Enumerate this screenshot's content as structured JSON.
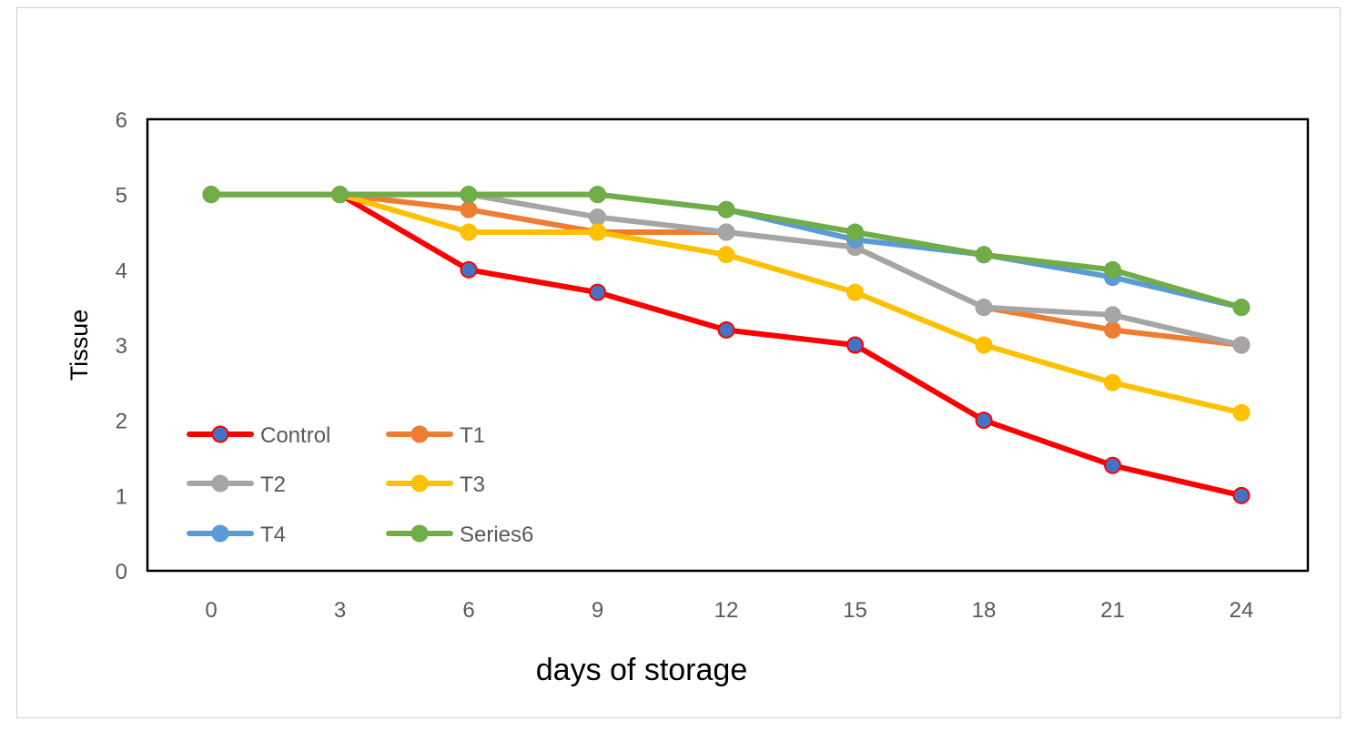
{
  "chart_data": {
    "type": "line",
    "title": "",
    "xlabel": "days of storage",
    "ylabel": "Tissue",
    "x": [
      0,
      3,
      6,
      9,
      12,
      15,
      18,
      21,
      24
    ],
    "ylim": [
      0,
      6
    ],
    "yticks": [
      0,
      1,
      2,
      3,
      4,
      5,
      6
    ],
    "grid": false,
    "legend_position": "bottom-left",
    "series": [
      {
        "name": "Control",
        "color": "#ff0000",
        "marker_color": "#4472c4",
        "values": [
          5,
          5,
          4,
          3.7,
          3.2,
          3,
          2,
          1.4,
          1
        ]
      },
      {
        "name": "T1",
        "color": "#ed7d31",
        "marker_color": "#ed7d31",
        "values": [
          5,
          5,
          4.8,
          4.5,
          4.5,
          4.3,
          3.5,
          3.2,
          3
        ]
      },
      {
        "name": "T2",
        "color": "#a5a5a5",
        "marker_color": "#a5a5a5",
        "values": [
          5,
          5,
          5,
          4.7,
          4.5,
          4.3,
          3.5,
          3.4,
          3
        ]
      },
      {
        "name": "T3",
        "color": "#ffc000",
        "marker_color": "#ffc000",
        "values": [
          5,
          5,
          4.5,
          4.5,
          4.2,
          3.7,
          3,
          2.5,
          2.1
        ]
      },
      {
        "name": "T4",
        "color": "#5b9bd5",
        "marker_color": "#5b9bd5",
        "values": [
          5,
          5,
          5,
          5,
          4.8,
          4.4,
          4.2,
          3.9,
          3.5
        ]
      },
      {
        "name": "Series6",
        "color": "#70ad47",
        "marker_color": "#70ad47",
        "values": [
          5,
          5,
          5,
          5,
          4.8,
          4.5,
          4.2,
          4,
          3.5
        ]
      }
    ]
  }
}
